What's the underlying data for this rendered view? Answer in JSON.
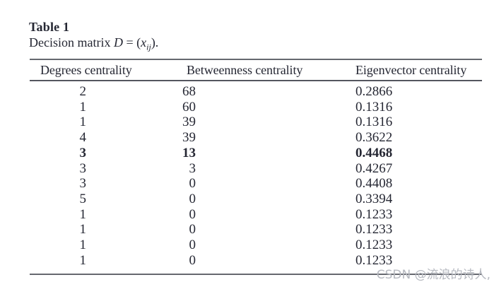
{
  "caption": {
    "title": "Table 1",
    "desc_prefix": "Decision matrix ",
    "math_var_d": "D",
    "math_equals": " = (",
    "math_var_x": "x",
    "math_subscript": "ij",
    "math_suffix": ")."
  },
  "table": {
    "columns": [
      {
        "key": "degrees",
        "label": "Degrees centrality"
      },
      {
        "key": "betweenness",
        "label": "Betweenness centrality"
      },
      {
        "key": "eigenvector",
        "label": "Eigenvector centrality"
      }
    ],
    "rows": [
      {
        "degrees": "2",
        "betweenness": "68",
        "eigenvector": "0.2866",
        "bold": false
      },
      {
        "degrees": "1",
        "betweenness": "60",
        "eigenvector": "0.1316",
        "bold": false
      },
      {
        "degrees": "1",
        "betweenness": "39",
        "eigenvector": "0.1316",
        "bold": false
      },
      {
        "degrees": "4",
        "betweenness": "39",
        "eigenvector": "0.3622",
        "bold": false
      },
      {
        "degrees": "3",
        "betweenness": "13",
        "eigenvector": "0.4468",
        "bold": true
      },
      {
        "degrees": "3",
        "betweenness": "3",
        "eigenvector": "0.4267",
        "bold": false
      },
      {
        "degrees": "3",
        "betweenness": "0",
        "eigenvector": "0.4408",
        "bold": false
      },
      {
        "degrees": "5",
        "betweenness": "0",
        "eigenvector": "0.3394",
        "bold": false
      },
      {
        "degrees": "1",
        "betweenness": "0",
        "eigenvector": "0.1233",
        "bold": false
      },
      {
        "degrees": "1",
        "betweenness": "0",
        "eigenvector": "0.1233",
        "bold": false
      },
      {
        "degrees": "1",
        "betweenness": "0",
        "eigenvector": "0.1233",
        "bold": false
      },
      {
        "degrees": "1",
        "betweenness": "0",
        "eigenvector": "0.1233",
        "bold": false
      }
    ]
  },
  "watermark": {
    "text": "CSDN @流浪的诗人,"
  },
  "colors": {
    "page_bg": "#ffffff",
    "text": "#252733",
    "rule": "#66686f",
    "rule_dark": "#54565e",
    "watermark": "#b6b9c0"
  }
}
